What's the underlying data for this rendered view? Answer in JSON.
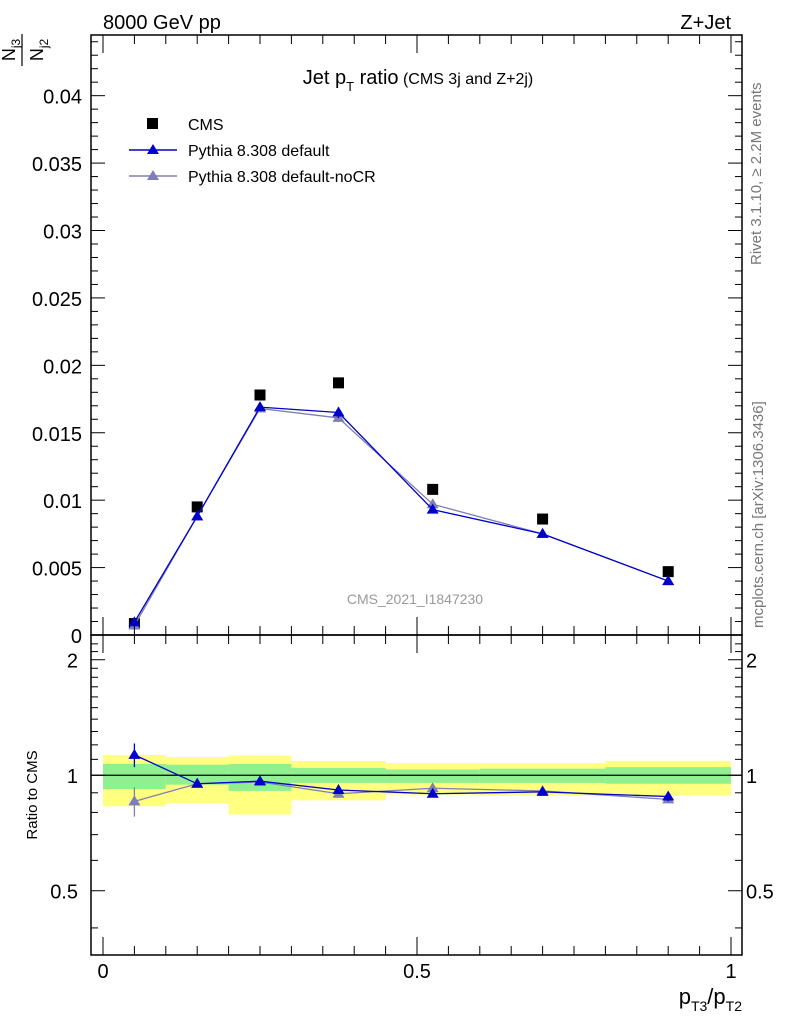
{
  "header": {
    "left_label": "8000 GeV pp",
    "right_label": "Z+Jet"
  },
  "side_labels": {
    "rivet": "Rivet 3.1.10, ≥ 2.2M events",
    "mcplots": "mcplots.cern.ch [arXiv:1306.3436]"
  },
  "watermark": "CMS_2021_I1847230",
  "chart_data": [
    {
      "type": "scatter",
      "title": "Jet p",
      "title_sub": "T",
      "title_tail": " ratio",
      "title_note": " (CMS 3j and Z+2j)",
      "ylabel": {
        "num": "N",
        "num_sub": "j3",
        "den": "N",
        "den_sub": "j2"
      },
      "xlim": [
        0,
        1
      ],
      "ylim": [
        0,
        0.0445
      ],
      "y_ticks": [
        0,
        0.005,
        0.01,
        0.015,
        0.02,
        0.025,
        0.03,
        0.035,
        0.04
      ],
      "y_tick_labels": [
        "0",
        "0.005",
        "0.01",
        "0.015",
        "0.02",
        "0.025",
        "0.03",
        "0.035",
        "0.04"
      ],
      "legend_position": "top-left",
      "x_edges": [
        0,
        0.1,
        0.2,
        0.3,
        0.45,
        0.6,
        0.8,
        1.0
      ],
      "x": [
        0.05,
        0.15,
        0.25,
        0.375,
        0.525,
        0.7,
        0.9
      ],
      "series": [
        {
          "name": "CMS",
          "color": "#000000",
          "marker": "square",
          "values": [
            0.00085,
            0.0095,
            0.0178,
            0.0187,
            0.0108,
            0.0086,
            0.0047
          ]
        },
        {
          "name": "Pythia 8.308 default",
          "color": "#0000cc",
          "marker": "triangle",
          "values": [
            0.00095,
            0.0088,
            0.0169,
            0.0165,
            0.0093,
            0.0075,
            0.004
          ],
          "errors": [
            0.0001,
            0.0002,
            0.0002,
            0.0004,
            0.0002,
            0.0002,
            0.0002
          ]
        },
        {
          "name": "Pythia 8.308 default-noCR",
          "color": "#7f7fb6",
          "marker": "triangle",
          "values": [
            0.0007,
            0.0088,
            0.0168,
            0.0161,
            0.0097,
            0.0075,
            0.004
          ],
          "errors": [
            0.0001,
            0.0002,
            0.0002,
            0.0003,
            0.0002,
            0.0002,
            0.0002
          ]
        }
      ]
    },
    {
      "type": "scatter",
      "ylabel": "Ratio to CMS",
      "xlabel": {
        "a": "p",
        "a_sub": "T3",
        "b": "/p",
        "b_sub": "T2"
      },
      "xlim": [
        0,
        1
      ],
      "ylim": [
        0.34,
        2.32
      ],
      "y_ticks": [
        0.5,
        1,
        2
      ],
      "y_tick_labels": [
        "0.5",
        "1",
        "2"
      ],
      "x_ticks": [
        0,
        0.5,
        1
      ],
      "x_tick_labels": [
        "0",
        "0.5",
        "1"
      ],
      "reference_line": 1,
      "x_edges": [
        0,
        0.1,
        0.2,
        0.3,
        0.45,
        0.6,
        0.8,
        1.0
      ],
      "band_inner": [
        [
          0.92,
          1.07
        ],
        [
          0.945,
          1.065
        ],
        [
          0.91,
          1.07
        ],
        [
          0.955,
          1.045
        ],
        [
          0.955,
          1.035
        ],
        [
          0.955,
          1.04
        ],
        [
          0.95,
          1.05
        ]
      ],
      "band_outer": [
        [
          0.83,
          1.13
        ],
        [
          0.845,
          1.115
        ],
        [
          0.79,
          1.125
        ],
        [
          0.86,
          1.09
        ],
        [
          0.89,
          1.075
        ],
        [
          0.885,
          1.075
        ],
        [
          0.885,
          1.09
        ]
      ],
      "x": [
        0.05,
        0.15,
        0.25,
        0.375,
        0.525,
        0.7,
        0.9
      ],
      "series": [
        {
          "name": "Pythia 8.308 default",
          "color": "#0000cc",
          "marker": "triangle",
          "values": [
            1.13,
            0.95,
            0.965,
            0.915,
            0.895,
            0.905,
            0.88
          ],
          "errors": [
            0.08,
            0.02,
            0.015,
            0.02,
            0.015,
            0.015,
            0.025
          ]
        },
        {
          "name": "Pythia 8.308 default-noCR",
          "color": "#7f7fb6",
          "marker": "triangle",
          "values": [
            0.855,
            0.95,
            0.96,
            0.895,
            0.925,
            0.91,
            0.865
          ],
          "errors": [
            0.075,
            0.02,
            0.015,
            0.02,
            0.02,
            0.015,
            0.02
          ]
        }
      ]
    }
  ]
}
